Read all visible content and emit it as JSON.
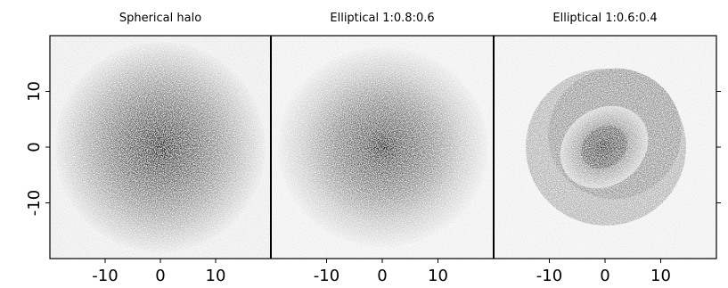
{
  "chart_data": [
    {
      "type": "density",
      "title": "Spherical halo",
      "xlim": [
        -20,
        20
      ],
      "ylim": [
        -20,
        20
      ],
      "xticks": [
        -10,
        0,
        10
      ],
      "yticks": [
        -10,
        0,
        10
      ]
    },
    {
      "type": "density",
      "title": "Elliptical 1:0.8:0.6",
      "xlim": [
        -20,
        20
      ],
      "ylim": [
        -20,
        20
      ],
      "xticks": [
        -10,
        0,
        10
      ]
    },
    {
      "type": "density",
      "title": "Elliptical 1:0.6:0.4",
      "xlim": [
        -20,
        20
      ],
      "ylim": [
        -20,
        20
      ],
      "xticks": [
        -10,
        0,
        10
      ]
    }
  ]
}
